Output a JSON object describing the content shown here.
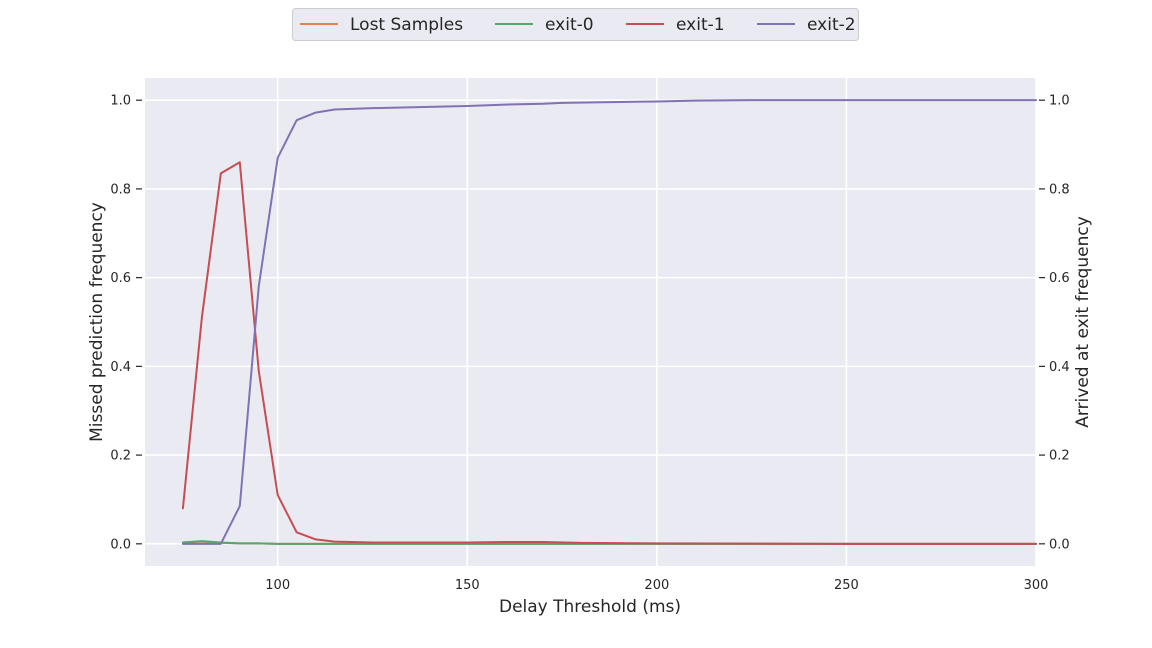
{
  "chart_data": {
    "type": "line",
    "title": "",
    "xlabel": "Delay Threshold (ms)",
    "ylabel": "Missed prediction frequency",
    "y2label": "Arrived at exit frequency",
    "xlim": [
      65,
      300
    ],
    "ylim": [
      -0.05,
      1.05
    ],
    "y2lim": [
      -0.05,
      1.05
    ],
    "xticks": [
      100,
      150,
      200,
      250,
      300
    ],
    "yticks": [
      0.0,
      0.2,
      0.4,
      0.6,
      0.8,
      1.0
    ],
    "ytick_labels": [
      "0.0",
      "0.2",
      "0.4",
      "0.6",
      "0.8",
      "1.0"
    ],
    "y2ticks": [
      0.0,
      0.2,
      0.4,
      0.6,
      0.8,
      1.0
    ],
    "y2tick_labels": [
      "0.0",
      "0.2",
      "0.4",
      "0.6",
      "0.8",
      "1.0"
    ],
    "grid": true,
    "legend_position": "top-center",
    "colors": {
      "plot_background": "#eaeaf2",
      "grid": "#ffffff"
    },
    "series": [
      {
        "name": "Lost Samples",
        "color": "#dd8452",
        "axis": "left",
        "x": [
          75,
          80,
          85,
          90,
          95,
          100,
          105,
          110,
          115,
          125,
          150,
          200,
          250,
          300
        ],
        "y": [
          0.003,
          0.005,
          0.002,
          0.001,
          0.001,
          0.0,
          0.0,
          0.0,
          0.0,
          0.0,
          0.0,
          0.0,
          0.0,
          0.0
        ]
      },
      {
        "name": "exit-0",
        "color": "#55a868",
        "axis": "left",
        "x": [
          75,
          80,
          85,
          90,
          95,
          100,
          105,
          110,
          115,
          125,
          150,
          200,
          250,
          300
        ],
        "y": [
          0.003,
          0.006,
          0.003,
          0.001,
          0.001,
          0.0,
          0.0,
          0.0,
          0.0,
          0.0,
          0.0,
          0.0,
          0.0,
          0.0
        ]
      },
      {
        "name": "exit-1",
        "color": "#c44e52",
        "axis": "left",
        "x": [
          75,
          80,
          85,
          90,
          95,
          100,
          105,
          110,
          115,
          125,
          150,
          160,
          170,
          180,
          200,
          250,
          300
        ],
        "y": [
          0.08,
          0.51,
          0.835,
          0.86,
          0.39,
          0.11,
          0.026,
          0.01,
          0.005,
          0.003,
          0.003,
          0.004,
          0.004,
          0.002,
          0.001,
          0.0,
          0.0
        ]
      },
      {
        "name": "exit-2",
        "color": "#8172b3",
        "axis": "right",
        "x": [
          75,
          80,
          85,
          90,
          95,
          100,
          105,
          110,
          115,
          125,
          140,
          150,
          160,
          170,
          175,
          190,
          200,
          210,
          225,
          250,
          300
        ],
        "y": [
          0.0,
          0.0,
          0.0,
          0.085,
          0.58,
          0.87,
          0.955,
          0.972,
          0.979,
          0.982,
          0.985,
          0.987,
          0.99,
          0.992,
          0.994,
          0.996,
          0.997,
          0.999,
          1.0,
          1.0,
          1.0
        ]
      }
    ]
  }
}
